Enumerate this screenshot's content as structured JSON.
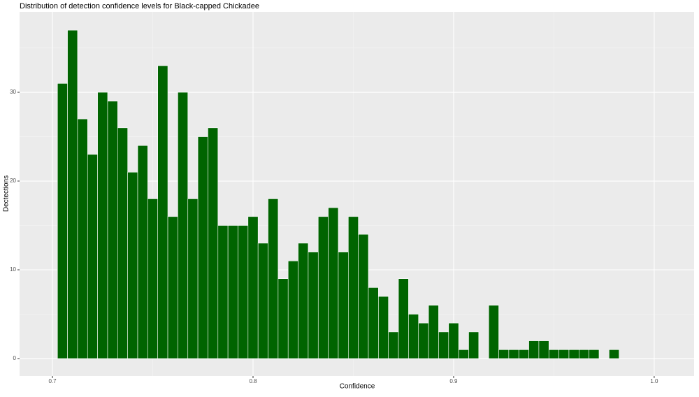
{
  "chart_data": {
    "type": "histogram",
    "title": "Distribution of detection confidence levels for Black-capped Chickadee",
    "x_label": "Confidence",
    "y_label": "Dectections",
    "bins": [
      0.7025,
      0.7075,
      0.7125,
      0.7175,
      0.7225,
      0.7275,
      0.7325,
      0.7375,
      0.7425,
      0.7475,
      0.7525,
      0.7575,
      0.7625,
      0.7675,
      0.7725,
      0.7775,
      0.7825,
      0.7875,
      0.7925,
      0.7975,
      0.8025,
      0.8075,
      0.8125,
      0.8175,
      0.8225,
      0.8275,
      0.8325,
      0.8375,
      0.8425,
      0.8475,
      0.8525,
      0.8575,
      0.8625,
      0.8675,
      0.8725,
      0.8775,
      0.8825,
      0.8875,
      0.8925,
      0.8975,
      0.9025,
      0.9075,
      0.9125,
      0.9175,
      0.9225,
      0.9275,
      0.9325,
      0.9375,
      0.9425,
      0.9475,
      0.9525,
      0.9575,
      0.9625,
      0.9675,
      0.9725,
      0.9775,
      0.9825
    ],
    "values": [
      31,
      37,
      27,
      23,
      30,
      29,
      26,
      21,
      24,
      18,
      33,
      16,
      30,
      18,
      25,
      26,
      15,
      15,
      15,
      16,
      13,
      18,
      9,
      11,
      13,
      12,
      16,
      17,
      12,
      16,
      14,
      8,
      7,
      3,
      9,
      5,
      4,
      6,
      3,
      4,
      1,
      3,
      0,
      6,
      1,
      1,
      1,
      2,
      2,
      1,
      1,
      1,
      1,
      1,
      0,
      1
    ],
    "color": "#006400",
    "xlim": [
      0.6836,
      1.0199
    ],
    "ylim": [
      -1.97,
      39.06
    ],
    "xticks": [
      0.7,
      0.8,
      0.9,
      {
        "value": 1,
        "label": "1.0"
      }
    ],
    "yticks": [
      0,
      10,
      20,
      30
    ],
    "x_minor_ticks": [
      0.75,
      0.85,
      0.95
    ],
    "y_minor_ticks": [
      5,
      15,
      25,
      35
    ],
    "grid": true
  }
}
